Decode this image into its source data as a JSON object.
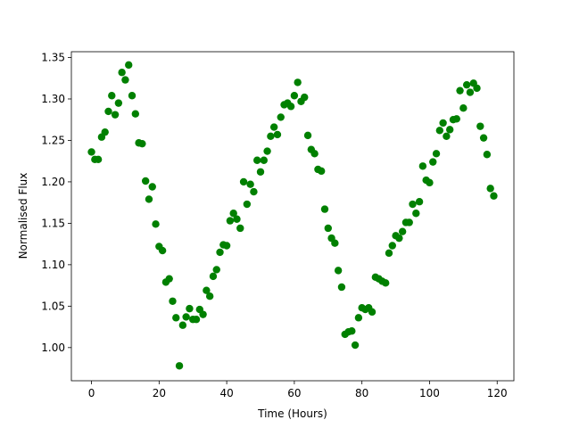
{
  "chart_data": {
    "type": "scatter",
    "xlabel": "Time (Hours)",
    "ylabel": "Normalised Flux",
    "color": "#008000",
    "x": [
      0,
      1,
      2,
      3,
      4,
      5,
      6,
      7,
      8,
      9,
      10,
      11,
      12,
      13,
      14,
      15,
      16,
      17,
      18,
      19,
      20,
      21,
      22,
      23,
      24,
      25,
      26,
      27,
      28,
      29,
      30,
      31,
      32,
      33,
      34,
      35,
      36,
      37,
      38,
      39,
      40,
      41,
      42,
      43,
      44,
      45,
      46,
      47,
      48,
      49,
      50,
      51,
      52,
      53,
      54,
      55,
      56,
      57,
      58,
      59,
      60,
      61,
      62,
      63,
      64,
      65,
      66,
      67,
      68,
      69,
      70,
      71,
      72,
      73,
      74,
      75,
      76,
      77,
      78,
      79,
      80,
      81,
      82,
      83,
      84,
      85,
      86,
      87,
      88,
      89,
      90,
      91,
      92,
      93,
      94,
      95,
      96,
      97,
      98,
      99,
      100,
      101,
      102,
      103,
      104,
      105,
      106,
      107,
      108,
      109,
      110,
      111,
      112,
      113,
      114,
      115,
      116,
      117,
      118,
      119
    ],
    "values": [
      1.236,
      1.227,
      1.227,
      1.254,
      1.26,
      1.285,
      1.304,
      1.281,
      1.295,
      1.332,
      1.323,
      1.341,
      1.304,
      1.282,
      1.247,
      1.246,
      1.201,
      1.179,
      1.194,
      1.149,
      1.122,
      1.117,
      1.079,
      1.083,
      1.056,
      1.036,
      0.978,
      1.027,
      1.037,
      1.047,
      1.034,
      1.034,
      1.046,
      1.04,
      1.069,
      1.062,
      1.086,
      1.094,
      1.115,
      1.124,
      1.123,
      1.153,
      1.162,
      1.155,
      1.144,
      1.2,
      1.173,
      1.197,
      1.188,
      1.226,
      1.212,
      1.226,
      1.237,
      1.255,
      1.266,
      1.257,
      1.278,
      1.293,
      1.295,
      1.291,
      1.304,
      1.32,
      1.297,
      1.302,
      1.256,
      1.239,
      1.234,
      1.215,
      1.213,
      1.167,
      1.144,
      1.132,
      1.126,
      1.093,
      1.073,
      1.016,
      1.019,
      1.02,
      1.003,
      1.036,
      1.048,
      1.046,
      1.048,
      1.043,
      1.085,
      1.083,
      1.08,
      1.078,
      1.114,
      1.123,
      1.135,
      1.132,
      1.14,
      1.151,
      1.151,
      1.173,
      1.162,
      1.176,
      1.219,
      1.202,
      1.199,
      1.224,
      1.234,
      1.262,
      1.271,
      1.255,
      1.263,
      1.275,
      1.276,
      1.31,
      1.289,
      1.317,
      1.308,
      1.319,
      1.313,
      1.267,
      1.253,
      1.233,
      1.192,
      1.183
    ],
    "xlim": [
      -5.95,
      124.95
    ],
    "ylim": [
      0.96,
      1.357
    ],
    "xticks": [
      0,
      20,
      40,
      60,
      80,
      100,
      120
    ],
    "yticks": [
      {
        "value": 1.0,
        "label": "1.00"
      },
      1.05,
      {
        "value": 1.1,
        "label": "1.10"
      },
      1.15,
      {
        "value": 1.2,
        "label": "1.20"
      },
      1.25,
      {
        "value": 1.3,
        "label": "1.30"
      },
      1.35
    ]
  }
}
